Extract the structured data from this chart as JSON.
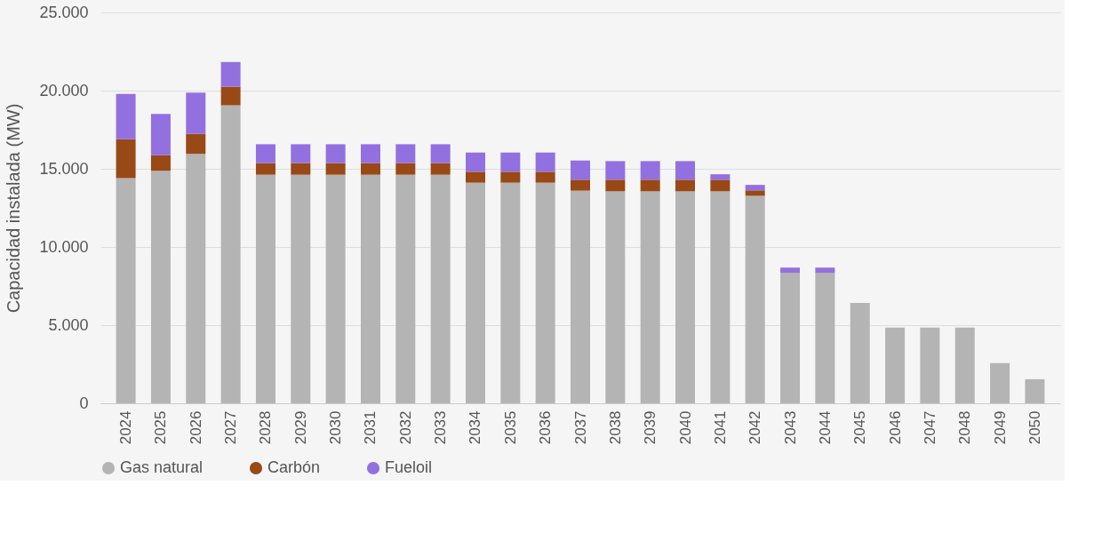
{
  "chart_data": {
    "type": "bar",
    "stacked": true,
    "ylabel": "Capacidad instalada (MW)",
    "categories": [
      "2024",
      "2025",
      "2026",
      "2027",
      "2028",
      "2029",
      "2030",
      "2031",
      "2032",
      "2033",
      "2034",
      "2035",
      "2036",
      "2037",
      "2038",
      "2039",
      "2040",
      "2041",
      "2042",
      "2043",
      "2044",
      "2045",
      "2046",
      "2047",
      "2048",
      "2049",
      "2050"
    ],
    "series": [
      {
        "name": "Gas natural",
        "color": "#b4b4b4",
        "values": [
          14400,
          14870,
          15960,
          19060,
          14620,
          14620,
          14620,
          14620,
          14620,
          14620,
          14110,
          14110,
          14110,
          13600,
          13560,
          13560,
          13560,
          13560,
          13270,
          8350,
          8350,
          6420,
          4840,
          4840,
          4840,
          2570,
          1540
        ]
      },
      {
        "name": "Carbón",
        "color": "#994916",
        "values": [
          2490,
          1000,
          1270,
          1190,
          740,
          740,
          740,
          740,
          740,
          740,
          700,
          700,
          700,
          700,
          740,
          740,
          740,
          740,
          350,
          null,
          null,
          null,
          null,
          null,
          null,
          null,
          null
        ]
      },
      {
        "name": "Fueloil",
        "color": "#9370e0",
        "values": [
          2900,
          2640,
          2640,
          1580,
          1210,
          1210,
          1210,
          1210,
          1210,
          1210,
          1230,
          1230,
          1230,
          1230,
          1190,
          1190,
          1190,
          350,
          350,
          330,
          330,
          null,
          null,
          null,
          null,
          null,
          null
        ]
      }
    ],
    "ylim": [
      0,
      25000
    ],
    "yticks": [
      {
        "value": 0,
        "label": "0"
      },
      {
        "value": 5000,
        "label": "5.000"
      },
      {
        "value": 10000,
        "label": "10.000"
      },
      {
        "value": 15000,
        "label": "15.000"
      },
      {
        "value": 20000,
        "label": "20.000"
      },
      {
        "value": 25000,
        "label": "25.000"
      }
    ],
    "grid": "y",
    "legend": "bottom"
  }
}
